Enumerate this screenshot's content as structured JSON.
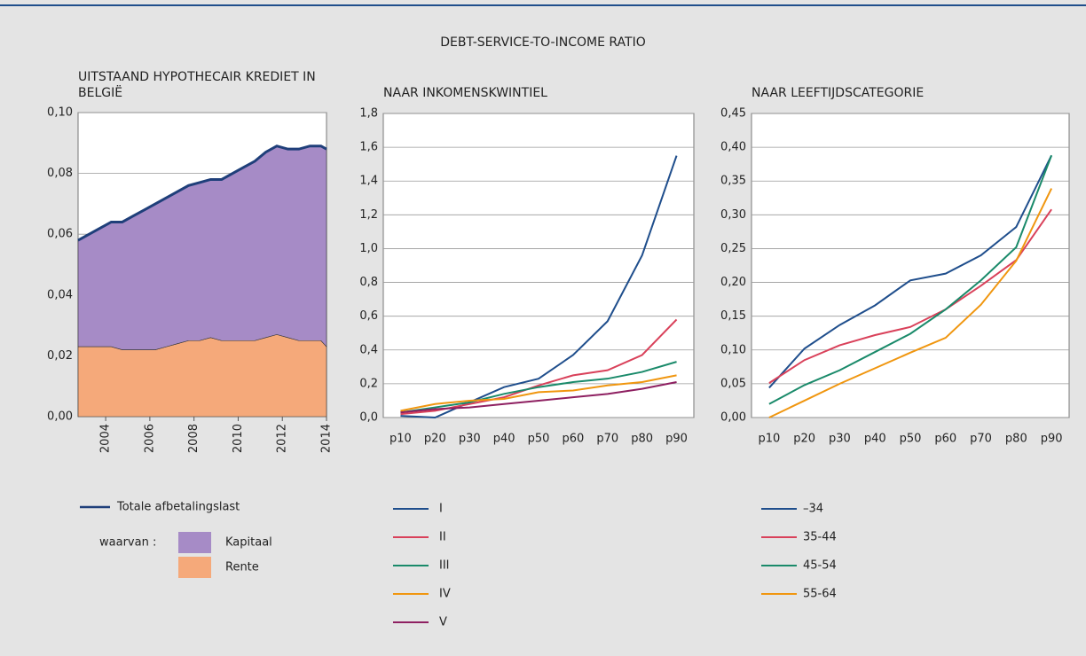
{
  "title": "DEBT-SERVICE-TO-INCOME RATIO",
  "chart_data": [
    {
      "type": "area",
      "stacked": true,
      "title": "UITSTAAND HYPOTHECAIR KREDIET IN BELGIË",
      "x": [
        2002.75,
        2003.25,
        2003.75,
        2004.25,
        2004.75,
        2005.25,
        2005.75,
        2006.25,
        2006.75,
        2007.25,
        2007.75,
        2008.25,
        2008.75,
        2009.25,
        2009.75,
        2010.25,
        2010.75,
        2011.25,
        2011.75,
        2012.25,
        2012.75,
        2013.25,
        2013.75,
        2014
      ],
      "series": [
        {
          "name": "Totale afbetalingslast",
          "type": "line",
          "color": "#1f3f7a",
          "values": [
            0.058,
            0.06,
            0.062,
            0.064,
            0.064,
            0.066,
            0.068,
            0.07,
            0.072,
            0.074,
            0.076,
            0.077,
            0.078,
            0.078,
            0.08,
            0.082,
            0.084,
            0.087,
            0.089,
            0.088,
            0.088,
            0.089,
            0.089,
            0.088
          ]
        },
        {
          "name": "Kapitaal",
          "type": "area",
          "color": "#a68bc6",
          "values": [
            0.035,
            0.037,
            0.039,
            0.041,
            0.042,
            0.044,
            0.046,
            0.048,
            0.049,
            0.05,
            0.051,
            0.052,
            0.052,
            0.053,
            0.055,
            0.057,
            0.059,
            0.061,
            0.062,
            0.062,
            0.063,
            0.064,
            0.064,
            0.065
          ]
        },
        {
          "name": "Rente",
          "type": "area",
          "color": "#f5a97a",
          "values": [
            0.023,
            0.023,
            0.023,
            0.023,
            0.022,
            0.022,
            0.022,
            0.022,
            0.023,
            0.024,
            0.025,
            0.025,
            0.026,
            0.025,
            0.025,
            0.025,
            0.025,
            0.026,
            0.027,
            0.026,
            0.025,
            0.025,
            0.025,
            0.023
          ]
        }
      ],
      "legend_note": "waarvan :",
      "xlim": [
        2002.75,
        2014
      ],
      "xticks": [
        2004,
        2006,
        2008,
        2010,
        2012,
        2014
      ],
      "ylim": [
        0,
        0.1
      ],
      "yticks": [
        {
          "value": 0,
          "label": "0,00"
        },
        {
          "value": 0.02,
          "label": "0,02"
        },
        {
          "value": 0.04,
          "label": "0,04"
        },
        {
          "value": 0.06,
          "label": "0,06"
        },
        {
          "value": 0.08,
          "label": "0,08"
        },
        {
          "value": 0.1,
          "label": "0,10"
        }
      ],
      "grid": true
    },
    {
      "type": "line",
      "title": "NAAR INKOMENSKWINTIEL",
      "categories": [
        "p10",
        "p20",
        "p30",
        "p40",
        "p50",
        "p60",
        "p70",
        "p80",
        "p90"
      ],
      "series": [
        {
          "name": "I",
          "color": "#1f4e8c",
          "values": [
            0.01,
            0.0,
            0.09,
            0.18,
            0.23,
            0.37,
            0.57,
            0.96,
            1.55
          ]
        },
        {
          "name": "II",
          "color": "#d9415a",
          "values": [
            0.02,
            0.04,
            0.08,
            0.12,
            0.19,
            0.25,
            0.28,
            0.37,
            0.58
          ]
        },
        {
          "name": "III",
          "color": "#1a8a6a",
          "values": [
            0.03,
            0.06,
            0.09,
            0.14,
            0.18,
            0.21,
            0.23,
            0.27,
            0.33
          ]
        },
        {
          "name": "IV",
          "color": "#f0960f",
          "values": [
            0.04,
            0.08,
            0.1,
            0.11,
            0.15,
            0.16,
            0.19,
            0.21,
            0.25
          ]
        },
        {
          "name": "V",
          "color": "#8e2061",
          "values": [
            0.03,
            0.05,
            0.06,
            0.08,
            0.1,
            0.12,
            0.14,
            0.17,
            0.21
          ]
        }
      ],
      "ylim": [
        0,
        1.8
      ],
      "yticks": [
        {
          "value": 0,
          "label": "0,0"
        },
        {
          "value": 0.2,
          "label": "0,2"
        },
        {
          "value": 0.4,
          "label": "0,4"
        },
        {
          "value": 0.6,
          "label": "0,6"
        },
        {
          "value": 0.8,
          "label": "0,8"
        },
        {
          "value": 1.0,
          "label": "1,0"
        },
        {
          "value": 1.2,
          "label": "1,2"
        },
        {
          "value": 1.4,
          "label": "1,4"
        },
        {
          "value": 1.6,
          "label": "1,6"
        },
        {
          "value": 1.8,
          "label": "1,8"
        }
      ],
      "grid": true
    },
    {
      "type": "line",
      "title": "NAAR LEEFTIJDSCATEGORIE",
      "categories": [
        "p10",
        "p20",
        "p30",
        "p40",
        "p50",
        "p60",
        "p70",
        "p80",
        "p90"
      ],
      "series": [
        {
          "name": "–34",
          "color": "#1f4e8c",
          "values": [
            0.044,
            0.102,
            0.137,
            0.166,
            0.203,
            0.213,
            0.24,
            0.282,
            0.388
          ]
        },
        {
          "name": "35-44",
          "color": "#d9415a",
          "values": [
            0.051,
            0.085,
            0.107,
            0.122,
            0.134,
            0.16,
            0.195,
            0.233,
            0.308
          ]
        },
        {
          "name": "45-54",
          "color": "#1a8a6a",
          "values": [
            0.02,
            0.048,
            0.07,
            0.097,
            0.124,
            0.16,
            0.203,
            0.252,
            0.388
          ]
        },
        {
          "name": "55-64",
          "color": "#f0960f",
          "values": [
            0.0,
            0.025,
            0.05,
            0.073,
            0.096,
            0.118,
            0.167,
            0.232,
            0.339
          ]
        }
      ],
      "ylim": [
        0,
        0.45
      ],
      "yticks": [
        {
          "value": 0,
          "label": "0,00"
        },
        {
          "value": 0.05,
          "label": "0,05"
        },
        {
          "value": 0.1,
          "label": "0,10"
        },
        {
          "value": 0.15,
          "label": "0,15"
        },
        {
          "value": 0.2,
          "label": "0,20"
        },
        {
          "value": 0.25,
          "label": "0,25"
        },
        {
          "value": 0.3,
          "label": "0,30"
        },
        {
          "value": 0.35,
          "label": "0,35"
        },
        {
          "value": 0.4,
          "label": "0,40"
        },
        {
          "value": 0.45,
          "label": "0,45"
        }
      ],
      "grid": true
    }
  ]
}
